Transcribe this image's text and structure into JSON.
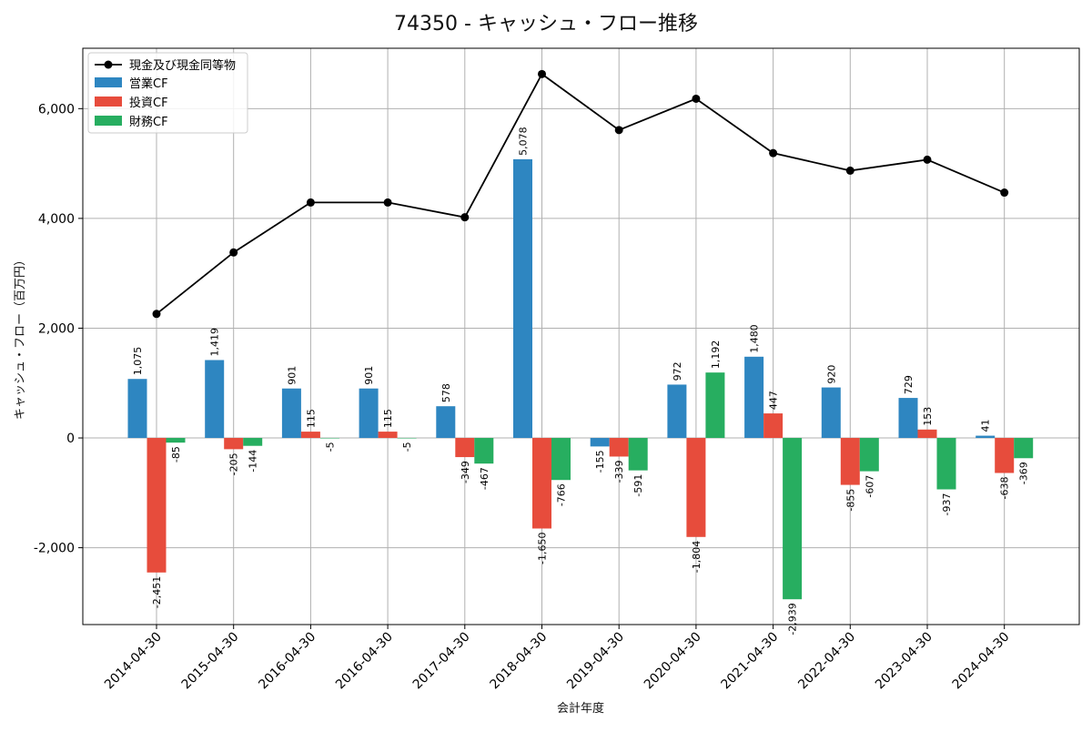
{
  "chart_data": {
    "type": "bar",
    "title": "74350 - キャッシュ・フロー推移",
    "xlabel": "会計年度",
    "ylabel": "キャッシュ・フロー（百万円）",
    "categories": [
      "2014-04-30",
      "2015-04-30",
      "2016-04-30",
      "2016-04-30",
      "2017-04-30",
      "2018-04-30",
      "2019-04-30",
      "2020-04-30",
      "2021-04-30",
      "2022-04-30",
      "2023-04-30",
      "2024-04-30"
    ],
    "ylim": [
      -3400,
      7100
    ],
    "yticks": [
      -2000,
      0,
      2000,
      4000,
      6000
    ],
    "ytick_labels": [
      "-2,000",
      "0",
      "2,000",
      "4,000",
      "6,000"
    ],
    "grid": true,
    "legend_position": "top-left",
    "line_series": {
      "name": "現金及び現金同等物",
      "color": "#000000",
      "values": [
        2260,
        3380,
        4290,
        4290,
        4020,
        6630,
        5610,
        6180,
        5190,
        4870,
        5070,
        4470
      ]
    },
    "series": [
      {
        "name": "営業CF",
        "color": "#2e86c1",
        "values": [
          1075,
          1419,
          901,
          901,
          578,
          5078,
          -155,
          972,
          1480,
          920,
          729,
          41
        ],
        "labels": [
          "1,075",
          "1,419",
          "901",
          "901",
          "578",
          "5,078",
          "-155",
          "972",
          "1,480",
          "920",
          "729",
          "41"
        ]
      },
      {
        "name": "投資CF",
        "color": "#e74c3c",
        "values": [
          -2451,
          -205,
          115,
          115,
          -349,
          -1650,
          -339,
          -1804,
          447,
          -855,
          153,
          -638
        ],
        "labels": [
          "-2,451",
          "-205",
          "115",
          "115",
          "-349",
          "-1,650",
          "-339",
          "-1,804",
          "447",
          "-855",
          "153",
          "-638"
        ]
      },
      {
        "name": "財務CF",
        "color": "#27ae60",
        "values": [
          -85,
          -144,
          -5,
          -5,
          -467,
          -766,
          -591,
          1192,
          -2939,
          -607,
          -937,
          -369
        ],
        "labels": [
          "-85",
          "-144",
          "-5",
          "-5",
          "-467",
          "-766",
          "-591",
          "1,192",
          "-2,939",
          "-607",
          "-937",
          "-369"
        ]
      }
    ]
  }
}
